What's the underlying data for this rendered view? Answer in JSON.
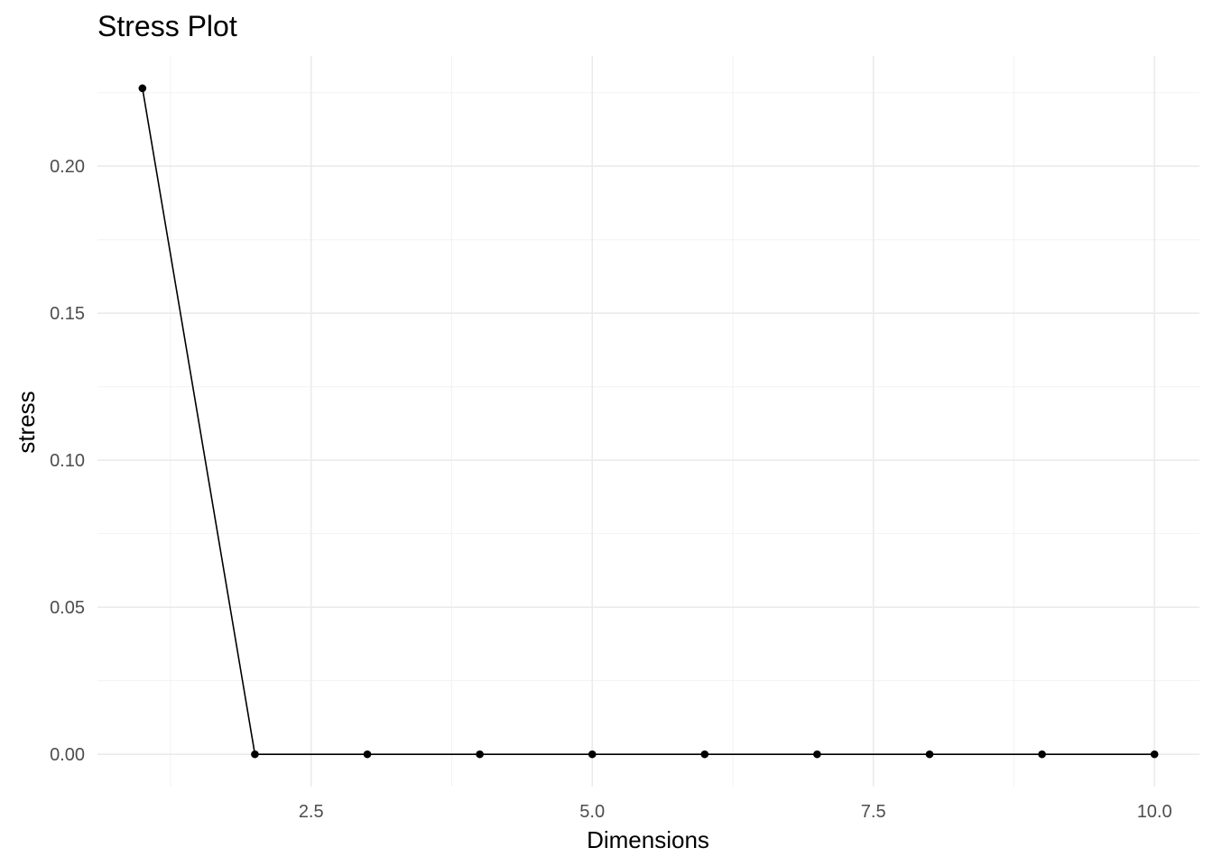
{
  "chart_data": {
    "type": "line",
    "title": "Stress Plot",
    "xlabel": "Dimensions",
    "ylabel": "stress",
    "xlim": [
      0.6,
      10.4
    ],
    "ylim": [
      -0.011,
      0.2375
    ],
    "x_ticks": [
      2.5,
      5.0,
      7.5,
      10.0
    ],
    "x_tick_labels": [
      "2.5",
      "5.0",
      "7.5",
      "10.0"
    ],
    "x_minor_ticks": [
      1.25,
      3.75,
      6.25,
      8.75
    ],
    "y_ticks": [
      0.0,
      0.05,
      0.1,
      0.15,
      0.2
    ],
    "y_tick_labels": [
      "0.00",
      "0.05",
      "0.10",
      "0.15",
      "0.20"
    ],
    "y_minor_ticks": [
      0.025,
      0.075,
      0.125,
      0.175,
      0.225
    ],
    "grid": true,
    "legend": "none",
    "series": [
      {
        "x": [
          1,
          2,
          3,
          4,
          5,
          6,
          7,
          8,
          9,
          10
        ],
        "values": [
          0.2265,
          0.0,
          0.0,
          0.0,
          0.0,
          0.0,
          0.0,
          0.0,
          0.0,
          0.0
        ],
        "color": "#000000"
      }
    ]
  }
}
